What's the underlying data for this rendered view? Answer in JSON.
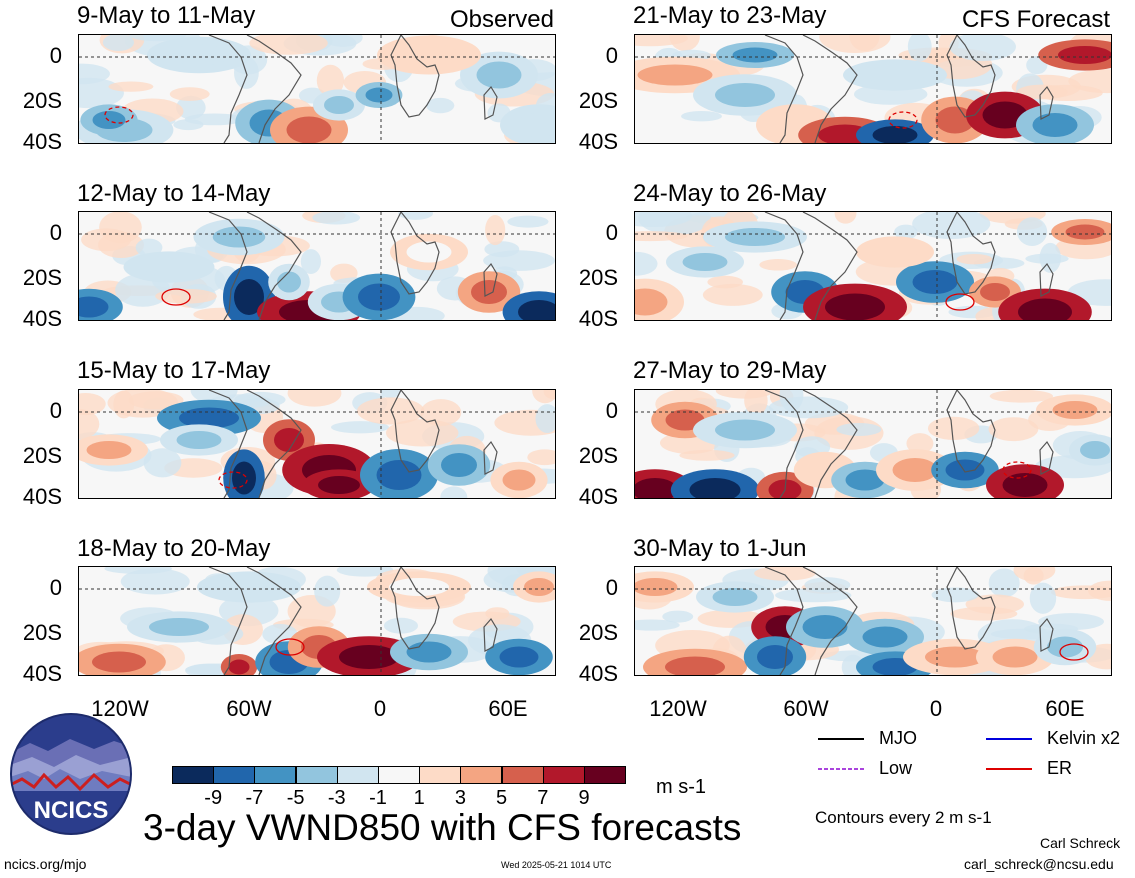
{
  "figure_title": "3-day VWND850 with CFS forecasts",
  "units_label": "m s-1",
  "observed_label": "Observed",
  "forecast_label": "CFS Forecast",
  "contour_note": "Contours every 2 m s-1",
  "author": "Carl Schreck",
  "email": "carl_schreck@ncsu.edu",
  "site": "ncics.org/mjo",
  "timestamp": "Wed 2025-05-21 1014 UTC",
  "logo_text": "NCICS",
  "chart_data": {
    "type": "heatmap",
    "variable": "VWND850 (m s-1)",
    "x_tick_labels": [
      "120W",
      "60W",
      "0",
      "60E"
    ],
    "y_tick_labels": [
      "0",
      "20S",
      "40S"
    ],
    "panels": [
      {
        "title": "9-May to 11-May",
        "group": "Observed"
      },
      {
        "title": "12-May to 14-May",
        "group": "Observed"
      },
      {
        "title": "15-May to 17-May",
        "group": "Observed"
      },
      {
        "title": "18-May to 20-May",
        "group": "Observed"
      },
      {
        "title": "21-May to 23-May",
        "group": "CFS Forecast"
      },
      {
        "title": "24-May to 26-May",
        "group": "CFS Forecast"
      },
      {
        "title": "27-May to 29-May",
        "group": "CFS Forecast"
      },
      {
        "title": "30-May to 1-Jun",
        "group": "CFS Forecast"
      }
    ],
    "colorbar": {
      "labels": [
        "-9",
        "-7",
        "-5",
        "-3",
        "-1",
        "1",
        "3",
        "5",
        "7",
        "9"
      ],
      "colors": [
        "#0b2a5c",
        "#2166ac",
        "#4393c3",
        "#92c5de",
        "#d1e5f0",
        "#f7f7f7",
        "#fddbc7",
        "#f4a582",
        "#d6604d",
        "#b2182b",
        "#67001f"
      ]
    },
    "legend": [
      {
        "label": "MJO",
        "color": "#000000",
        "dashed": false
      },
      {
        "label": "Kelvin x2",
        "color": "#0000dd",
        "dashed": false
      },
      {
        "label": "Low",
        "color": "#aa44dd",
        "dashed": true
      },
      {
        "label": "ER",
        "color": "#dd0000",
        "dashed": false
      }
    ]
  }
}
